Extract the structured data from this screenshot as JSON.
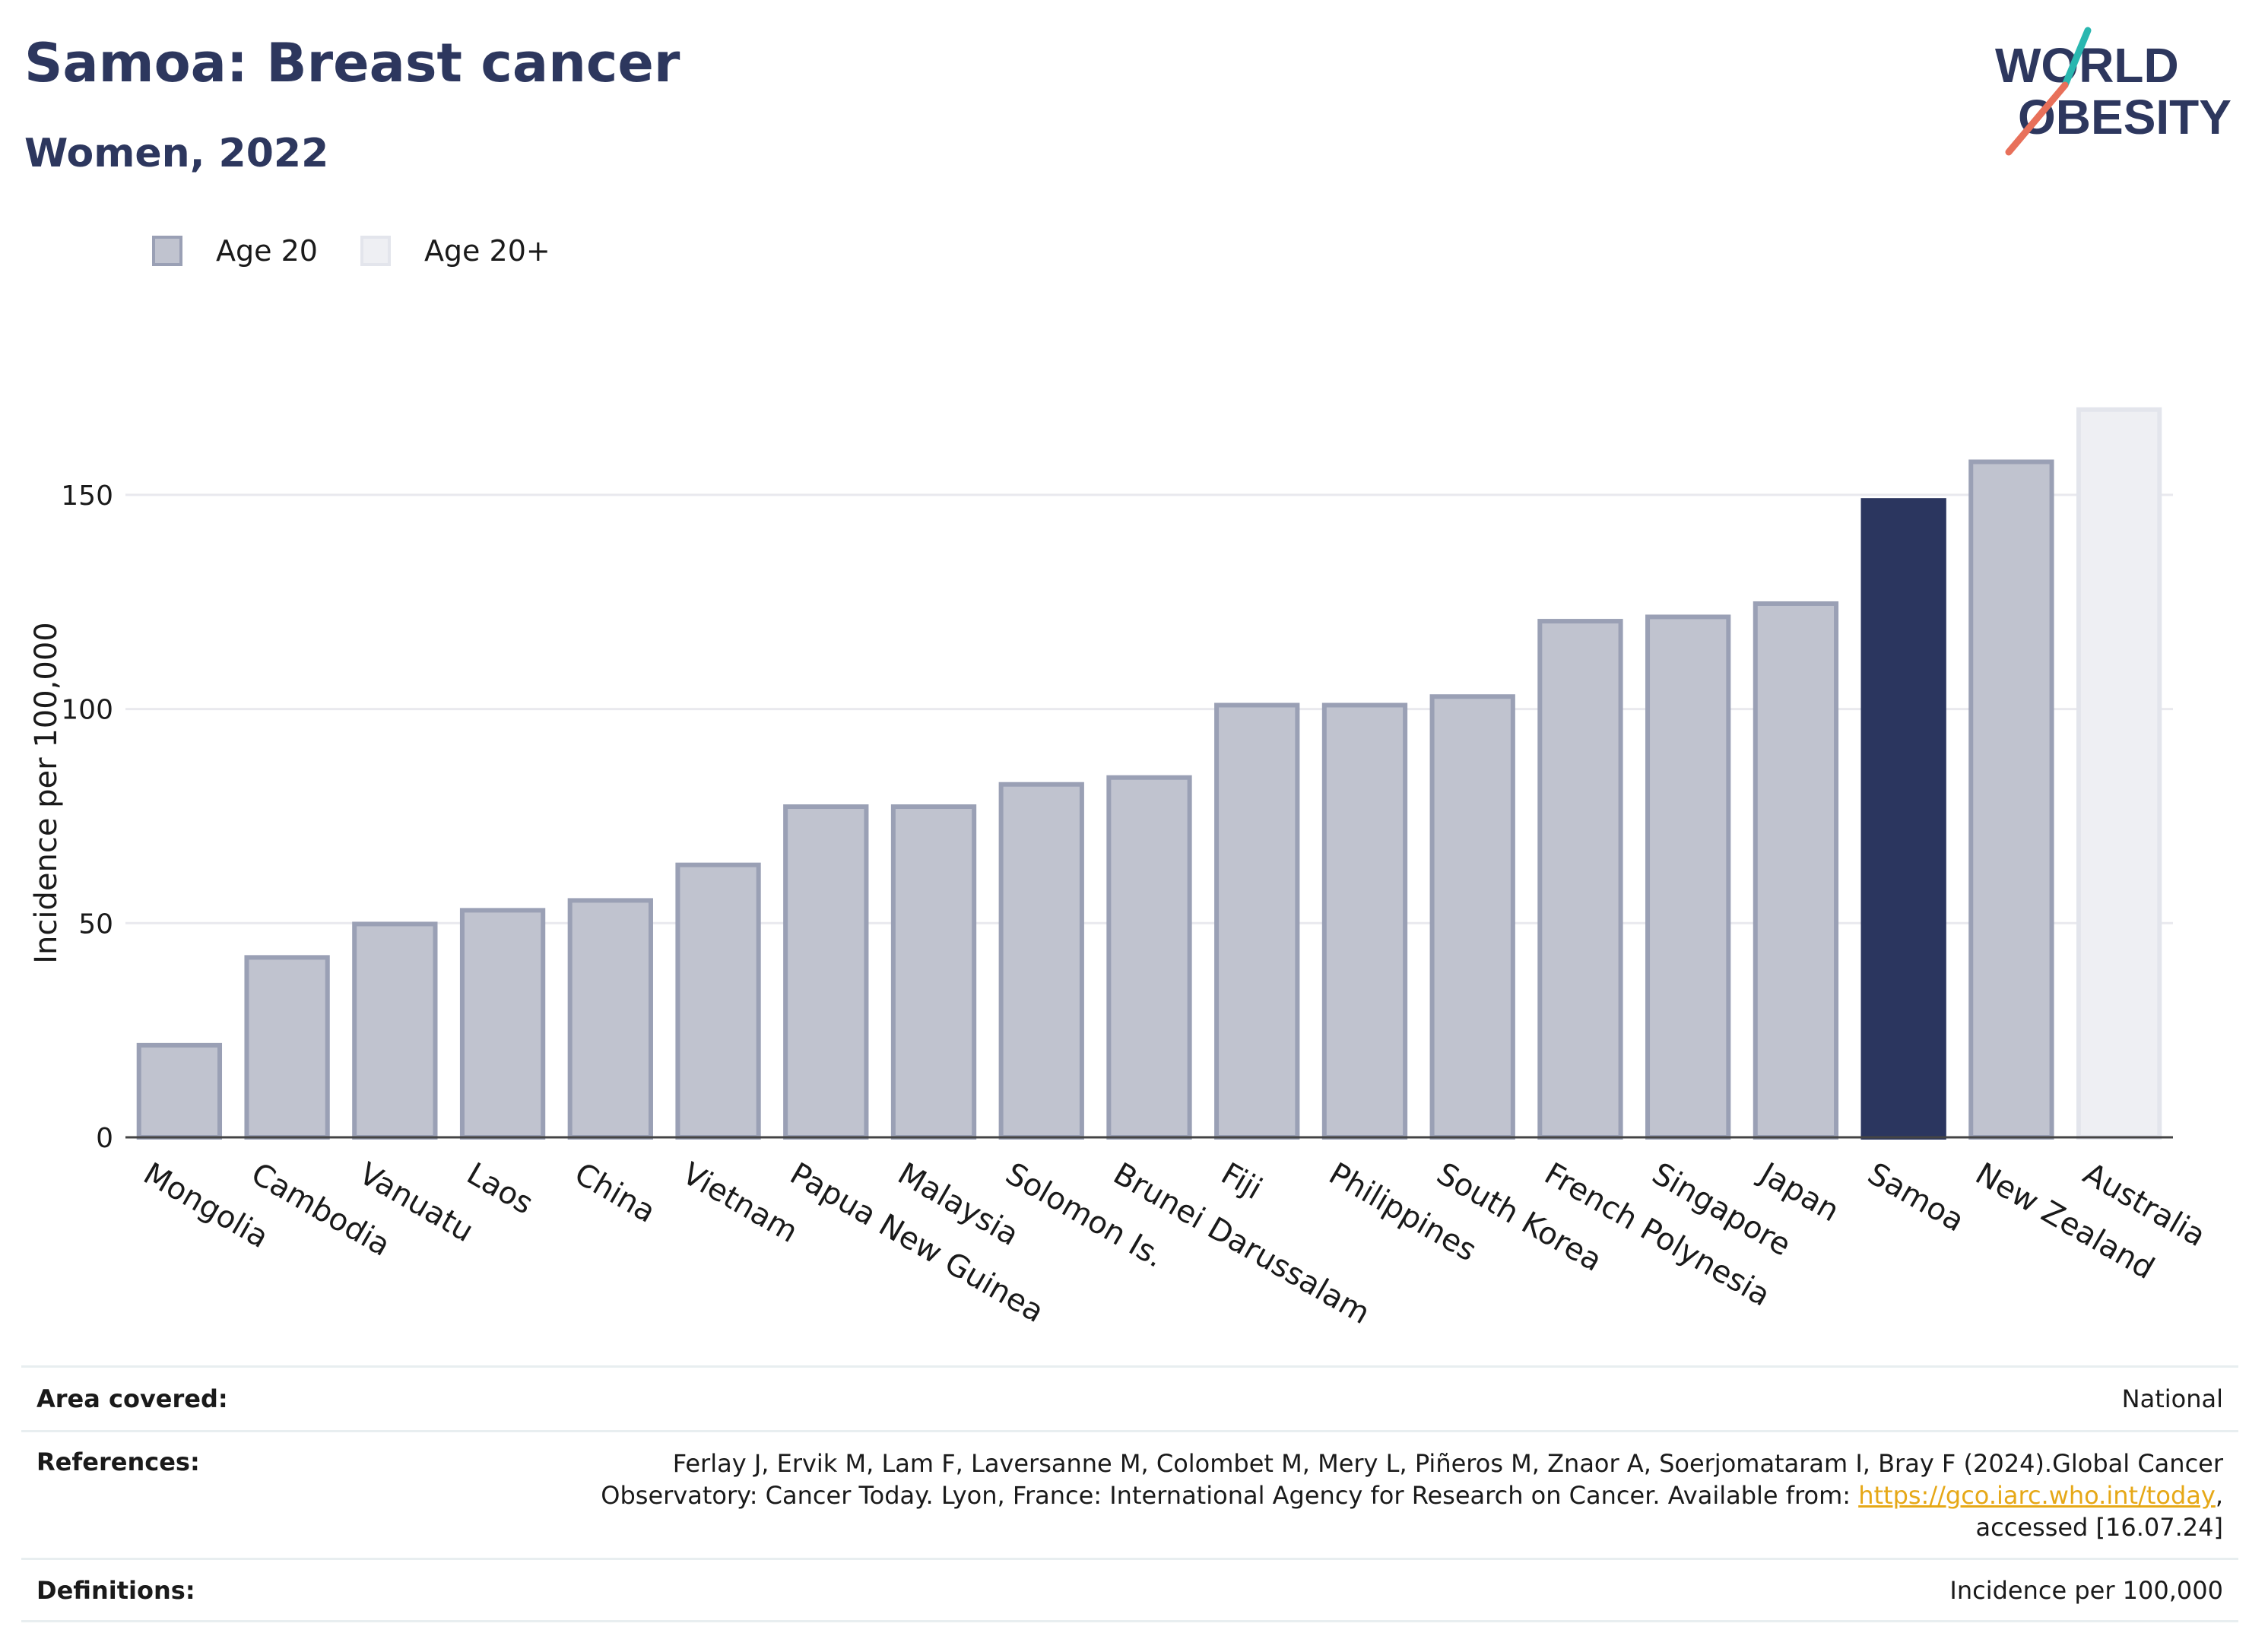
{
  "header": {
    "title": "Samoa: Breast cancer",
    "subtitle": "Women, 2022"
  },
  "logo": {
    "line1": "WORLD",
    "line2": "OBESITY",
    "slash_colors": [
      "#2ab7b0",
      "#e8705a"
    ]
  },
  "legend": [
    {
      "label": "Age 20",
      "fill": "#c0c3cf",
      "stroke": "#9aa0b5"
    },
    {
      "label": "Age 20+",
      "fill": "#eeeff3",
      "stroke": "#e3e5ec"
    }
  ],
  "colors": {
    "highlight": "#2b365f",
    "bar_fill": "#c0c3cf",
    "bar_stroke": "#9aa0b5",
    "bar_light_fill": "#eeeff3",
    "bar_light_stroke": "#e3e5ec",
    "axis": "#444444",
    "grid": "#e9e9ee",
    "link": "#e6a817"
  },
  "chart_data": {
    "type": "bar",
    "categories": [
      "Mongolia",
      "Cambodia",
      "Vanuatu",
      "Laos",
      "China",
      "Vietnam",
      "Papua New Guinea",
      "Malaysia",
      "Solomon Is.",
      "Brunei Darussalam",
      "Fiji",
      "Philippines",
      "South Korea",
      "French Polynesia",
      "Singapore",
      "Japan",
      "Samoa",
      "New Zealand",
      "Australia"
    ],
    "values": [
      21.5,
      42.0,
      49.8,
      53.0,
      55.3,
      63.6,
      77.2,
      77.2,
      82.4,
      84.0,
      100.9,
      100.9,
      102.9,
      120.5,
      121.5,
      124.6,
      148.7,
      157.7,
      169.9
    ],
    "series_group": [
      "Age 20",
      "Age 20",
      "Age 20",
      "Age 20",
      "Age 20",
      "Age 20",
      "Age 20",
      "Age 20",
      "Age 20",
      "Age 20",
      "Age 20",
      "Age 20",
      "Age 20",
      "Age 20",
      "Age 20",
      "Age 20",
      "Age 20",
      "Age 20",
      "Age 20+"
    ],
    "highlight": "Samoa",
    "ylabel": "Incidence per 100,000",
    "xlabel": "",
    "ylim": [
      0,
      175
    ],
    "yticks": [
      0,
      50,
      100,
      150
    ],
    "grid": true,
    "legend_position": "top-left"
  },
  "info": {
    "area_label": "Area covered:",
    "area_value": "National",
    "ref_label": "References:",
    "ref_text_1": "Ferlay J, Ervik M, Lam F, Laversanne M, Colombet M, Mery L, Piñeros M, Znaor A, Soerjomataram I, Bray F (2024).Global Cancer",
    "ref_text_2": "Observatory: Cancer Today. Lyon, France: International Agency for Research on Cancer. Available from: ",
    "ref_link": "https://gco.iarc.who.int/today",
    "ref_text_3": ",",
    "ref_text_4": "accessed [16.07.24]",
    "def_label": "Definitions:",
    "def_value": "Incidence per 100,000"
  }
}
